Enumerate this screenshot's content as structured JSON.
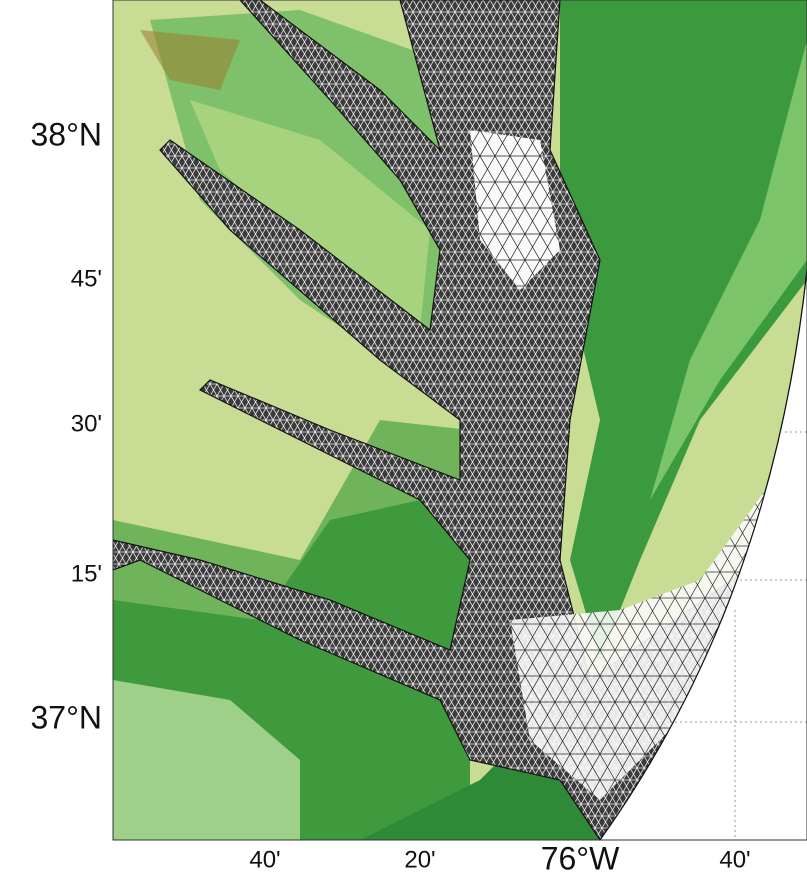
{
  "map": {
    "lat_labels": [
      "38°N",
      "45'",
      "30'",
      "15'",
      "37°N"
    ],
    "lon_labels": [
      "40'",
      "20'",
      "76°W",
      "40'"
    ]
  }
}
